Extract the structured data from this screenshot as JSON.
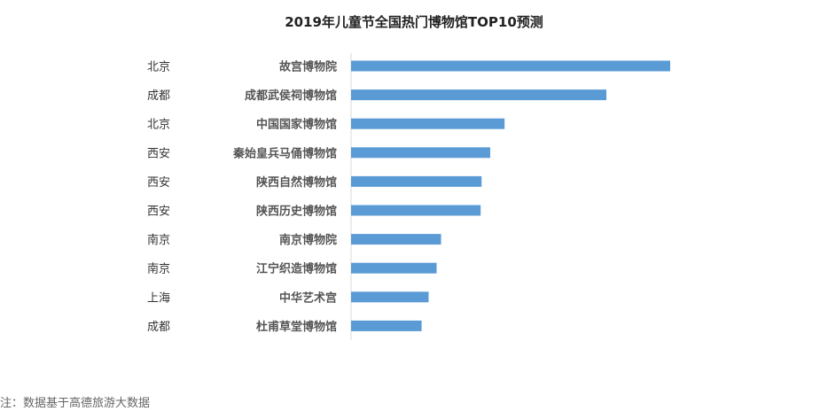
{
  "chart_data": {
    "type": "bar",
    "orientation": "horizontal",
    "title": "2019年儿童节全国热门博物馆TOP10预测",
    "categories": [
      "故宫博物院",
      "成都武侯祠博物馆",
      "中国国家博物馆",
      "秦始皇兵马俑博物馆",
      "陕西自然博物馆",
      "陕西历史博物馆",
      "南京博物院",
      "江宁织造博物馆",
      "中华艺术宫",
      "杜甫草堂博物馆"
    ],
    "cities": [
      "北京",
      "成都",
      "北京",
      "西安",
      "西安",
      "西安",
      "南京",
      "南京",
      "上海",
      "成都"
    ],
    "values": [
      100,
      80,
      48.1,
      43.6,
      40.9,
      40.6,
      28.2,
      26.8,
      24.3,
      22.1
    ],
    "xlim": [
      0,
      100
    ],
    "bar_color": "#5b9bd5",
    "grid": false,
    "legend": "none"
  },
  "note": "注：数据基于高德旅游大数据"
}
